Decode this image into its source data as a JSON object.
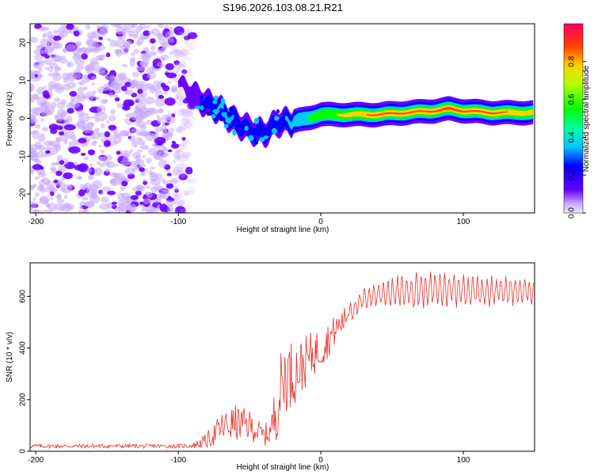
{
  "title": "S196.2026.103.08.21.R21",
  "chart_data": [
    {
      "type": "heatmap",
      "xlabel": "Height of straight line (km)",
      "ylabel": "Frequency (Hz)",
      "xlim": [
        -204,
        150
      ],
      "ylim": [
        -25,
        25
      ],
      "xticks": [
        -200,
        -100,
        0,
        100
      ],
      "yticks": [
        20,
        10,
        0,
        -10,
        -20
      ],
      "colorbar": {
        "label": "Normalized spectral amplitude",
        "range": [
          0,
          1
        ],
        "ticks": [
          0.0,
          0.2,
          0.4,
          0.6,
          0.8
        ]
      },
      "ridge": {
        "description_points_x_km": [
          -100,
          -90,
          -80,
          -70,
          -60,
          -50,
          -40,
          -30,
          -20,
          -10,
          0,
          20,
          40,
          60,
          80,
          90,
          100,
          120,
          150
        ],
        "frequency_hz": [
          10,
          6,
          4,
          2,
          -1,
          -3,
          -4,
          -1,
          -1,
          0,
          1,
          1,
          1,
          1.5,
          2,
          2.5,
          2,
          1.5,
          1.5
        ],
        "amplitude": [
          0.1,
          0.2,
          0.3,
          0.4,
          0.35,
          0.3,
          0.35,
          0.3,
          0.4,
          0.55,
          0.7,
          0.85,
          0.9,
          0.9,
          0.9,
          0.95,
          0.9,
          0.9,
          0.85
        ]
      }
    },
    {
      "type": "line",
      "xlabel": "Height of straight line (km)",
      "ylabel": "SNR (10 * v/v)",
      "xlim": [
        -204,
        150
      ],
      "ylim": [
        0,
        730
      ],
      "xticks": [
        -200,
        -100,
        0,
        100
      ],
      "yticks": [
        0,
        200,
        400,
        600
      ],
      "series": [
        {
          "name": "SNR",
          "color": "#e8302a",
          "x": [
            -204,
            -180,
            -160,
            -140,
            -120,
            -100,
            -90,
            -80,
            -70,
            -60,
            -50,
            -40,
            -35,
            -30,
            -25,
            -20,
            -15,
            -10,
            -5,
            0,
            5,
            10,
            15,
            20,
            25,
            30,
            40,
            50,
            60,
            70,
            80,
            90,
            100,
            110,
            120,
            130,
            140,
            150
          ],
          "y": [
            20,
            20,
            20,
            20,
            20,
            20,
            22,
            40,
            90,
            110,
            100,
            60,
            80,
            200,
            300,
            300,
            320,
            350,
            380,
            400,
            430,
            470,
            500,
            540,
            560,
            590,
            610,
            615,
            620,
            625,
            625,
            630,
            625,
            620,
            620,
            620,
            620,
            620
          ],
          "noise_amplitude": [
            8,
            8,
            8,
            8,
            8,
            8,
            10,
            30,
            60,
            70,
            60,
            40,
            60,
            150,
            150,
            130,
            110,
            100,
            90,
            80,
            70,
            60,
            50,
            45,
            40,
            40,
            50,
            60,
            70,
            70,
            70,
            70,
            65,
            60,
            60,
            55,
            55,
            55
          ]
        }
      ]
    }
  ]
}
